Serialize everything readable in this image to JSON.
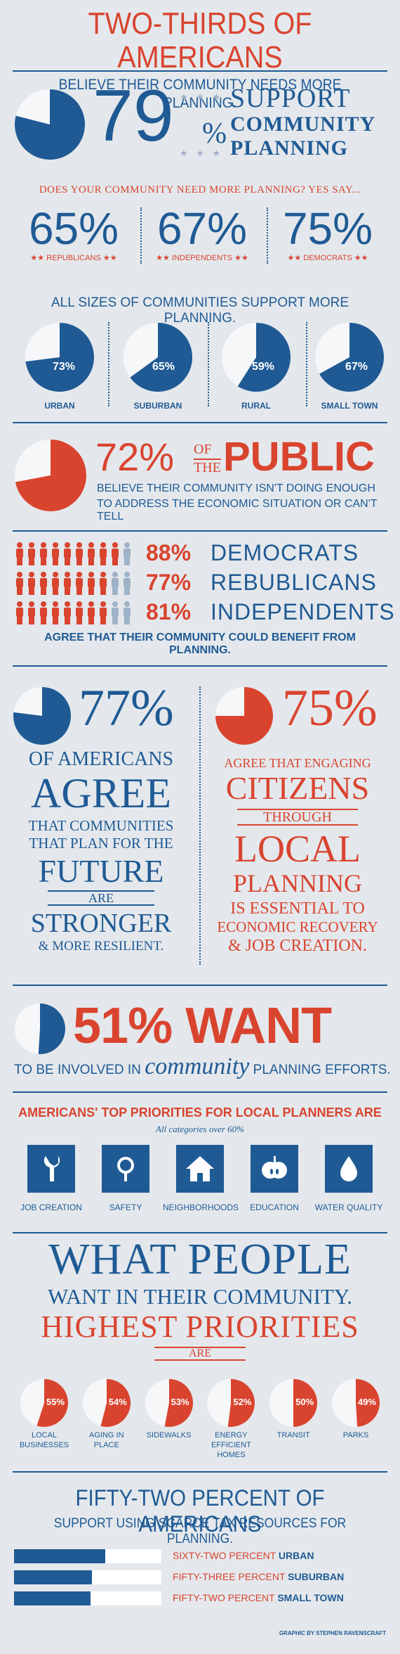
{
  "header": {
    "title": "TWO-THIRDS OF AMERICANS",
    "subtitle": "BELIEVE THEIR COMMUNITY NEEDS MORE PLANNING."
  },
  "support": {
    "percent": "79",
    "percent_sign": "%",
    "line1": "SUPPORT",
    "line2": "COMMUNITY",
    "line3": "PLANNING",
    "fraction": 0.79,
    "stars": "★ ★ ★"
  },
  "needs_more": {
    "question": "DOES YOUR COMMUNITY NEED MORE PLANNING? YES SAY...",
    "items": [
      {
        "value": "65%",
        "label": "REPUBLICANS"
      },
      {
        "value": "67%",
        "label": "INDEPENDENTS"
      },
      {
        "value": "75%",
        "label": "DEMOCRATS"
      }
    ],
    "star_pair": "★★"
  },
  "sizes": {
    "heading": "ALL SIZES OF COMMUNITIES SUPPORT MORE PLANNING.",
    "items": [
      {
        "value": "73%",
        "label": "URBAN",
        "fraction": 0.73
      },
      {
        "value": "65%",
        "label": "SUBURBAN",
        "fraction": 0.65
      },
      {
        "value": "59%",
        "label": "RURAL",
        "fraction": 0.59
      },
      {
        "value": "67%",
        "label": "SMALL TOWN",
        "fraction": 0.67
      }
    ]
  },
  "public": {
    "percent": "72%",
    "of": "OF",
    "the": "THE",
    "word": "PUBLIC",
    "line1": "BELIEVE THEIR COMMUNITY ISN'T DOING ENOUGH",
    "line2": "TO ADDRESS THE ECONOMIC SITUATION OR CAN'T TELL",
    "fraction": 0.72
  },
  "benefit": {
    "rows": [
      {
        "value": "88%",
        "label": "DEMOCRATS",
        "filled": 8.8
      },
      {
        "value": "77%",
        "label": "REBUBLICANS",
        "filled": 7.7
      },
      {
        "value": "81%",
        "label": "INDEPENDENTS",
        "filled": 8.1
      }
    ],
    "caption": "AGREE THAT THEIR COMMUNITY COULD BENEFIT FROM PLANNING."
  },
  "agree": {
    "percent": "77%",
    "fraction": 0.77,
    "l1": "OF AMERICANS",
    "l2": "AGREE",
    "l3": "THAT COMMUNITIES",
    "l4": "THAT PLAN FOR THE",
    "l5": "FUTURE",
    "l6": "ARE",
    "l7": "STRONGER",
    "l8": "& MORE RESILIENT."
  },
  "engaging": {
    "percent": "75%",
    "fraction": 0.75,
    "l1": "AGREE THAT ENGAGING",
    "l2": "CITIZENS",
    "l3": "THROUGH",
    "l4": "LOCAL",
    "l5": "PLANNING",
    "l6": "IS ESSENTIAL TO",
    "l7": "ECONOMIC RECOVERY",
    "l8": "& JOB CREATION."
  },
  "want": {
    "headline": "51% WANT",
    "fraction": 0.51,
    "pre": "TO BE INVOLVED IN",
    "em": "community",
    "post": "PLANNING EFFORTS."
  },
  "priorities": {
    "heading": "AMERICANS' TOP PRIORITIES FOR LOCAL PLANNERS ARE",
    "sub": "All categories over 60%",
    "items": [
      {
        "label": "JOB CREATION",
        "icon": "wrench-icon"
      },
      {
        "label": "SAFETY",
        "icon": "magnifier-icon"
      },
      {
        "label": "NEIGHBORHOODS",
        "icon": "house-icon"
      },
      {
        "label": "EDUCATION",
        "icon": "apple-icon"
      },
      {
        "label": "WATER QUALITY",
        "icon": "water-drop-icon"
      }
    ]
  },
  "want_in_community": {
    "l1": "WHAT PEOPLE",
    "l2": "WANT IN THEIR COMMUNITY.",
    "l3": "HIGHEST PRIORITIES",
    "l4": "ARE",
    "items": [
      {
        "value": "55%",
        "label": "LOCAL BUSINESSES",
        "fraction": 0.55
      },
      {
        "value": "54%",
        "label": "AGING IN PLACE",
        "fraction": 0.54
      },
      {
        "value": "53%",
        "label": "SIDEWALKS",
        "fraction": 0.53
      },
      {
        "value": "52%",
        "label": "ENERGY EFFICIENT HOMES",
        "fraction": 0.52
      },
      {
        "value": "50%",
        "label": "TRANSIT",
        "fraction": 0.5
      },
      {
        "value": "49%",
        "label": "PARKS",
        "fraction": 0.49
      }
    ]
  },
  "tax": {
    "heading": "FIFTY-TWO PERCENT OF AMERICANS",
    "sub": "SUPPORT USING SCARCE TAX RESOURCES FOR PLANNING.",
    "bars": [
      {
        "prefix": "SIXTY-TWO PERCENT",
        "label": "URBAN",
        "fraction": 0.62
      },
      {
        "prefix": "FIFTY-THREE PERCENT",
        "label": "SUBURBAN",
        "fraction": 0.53
      },
      {
        "prefix": "FIFTY-TWO PERCENT",
        "label": "SMALL TOWN",
        "fraction": 0.52
      }
    ]
  },
  "credit": "GRAPHIC BY STEPHEN RAVENSCRAFT",
  "colors": {
    "blue": "#1f5a94",
    "red": "#d9442f",
    "bg": "#e4e8ec",
    "light": "#f6f7f9"
  }
}
